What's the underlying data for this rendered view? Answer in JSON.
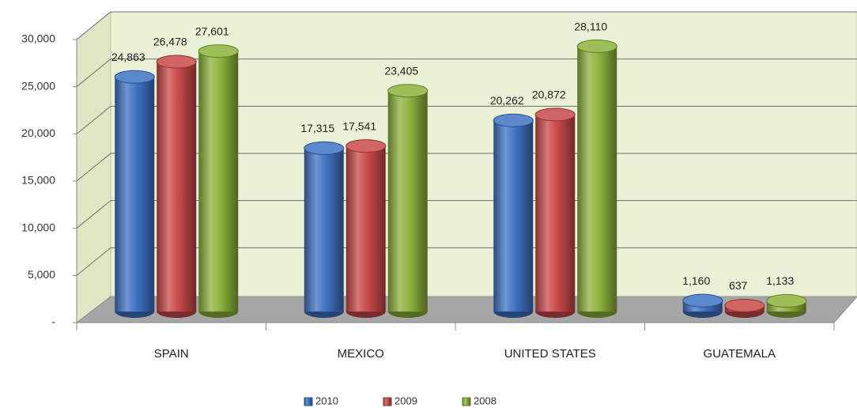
{
  "chart_data": {
    "type": "bar",
    "categories": [
      "SPAIN",
      "MEXICO",
      "UNITED STATES",
      "GUATEMALA"
    ],
    "series": [
      {
        "name": "2010",
        "color": "#3f73c4",
        "values": [
          24863,
          17315,
          20262,
          1160
        ],
        "value_labels": [
          "24,863",
          "17,315",
          "20,262",
          "1,160"
        ]
      },
      {
        "name": "2009",
        "color": "#c94a48",
        "values": [
          26478,
          17541,
          20872,
          637
        ],
        "value_labels": [
          "26,478",
          "17,541",
          "20,872",
          "637"
        ]
      },
      {
        "name": "2008",
        "color": "#8db33c",
        "values": [
          27601,
          23405,
          28110,
          1133
        ],
        "value_labels": [
          "27,601",
          "23,405",
          "28,110",
          "1,133"
        ]
      }
    ],
    "ylim": [
      0,
      30000
    ],
    "yticks": [
      {
        "value": 0,
        "label": "-"
      },
      {
        "value": 5000,
        "label": "5,000"
      },
      {
        "value": 10000,
        "label": "10,000"
      },
      {
        "value": 15000,
        "label": "15,000"
      },
      {
        "value": 20000,
        "label": "20,000"
      },
      {
        "value": 25000,
        "label": "25,000"
      },
      {
        "value": 30000,
        "label": "30,000"
      }
    ],
    "grid": true,
    "legend": "bottom"
  }
}
